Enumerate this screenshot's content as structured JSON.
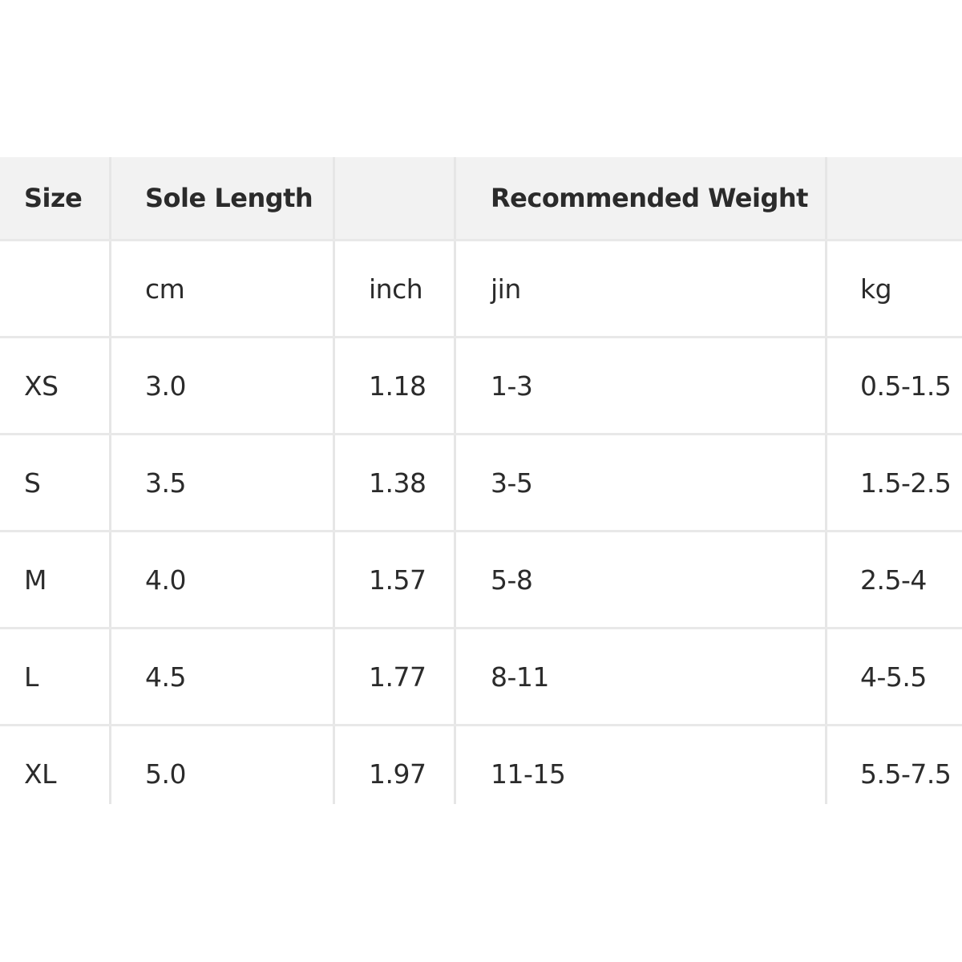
{
  "header": [
    "Size",
    "Sole Length",
    "",
    "Recommended Weight",
    ""
  ],
  "units": [
    "",
    "cm",
    "inch",
    "jin",
    "kg"
  ],
  "rows": [
    [
      "XS",
      "3.0",
      "1.18",
      "1-3",
      "0.5-1.5"
    ],
    [
      "S",
      "3.5",
      "1.38",
      "3-5",
      "1.5-2.5"
    ],
    [
      "M",
      "4.0",
      "1.57",
      "5-8",
      "2.5-4"
    ],
    [
      "L",
      "4.5",
      "1.77",
      "8-11",
      "4-5.5"
    ],
    [
      "XL",
      "5.0",
      "1.97",
      "11-15",
      "5.5-7.5"
    ]
  ]
}
